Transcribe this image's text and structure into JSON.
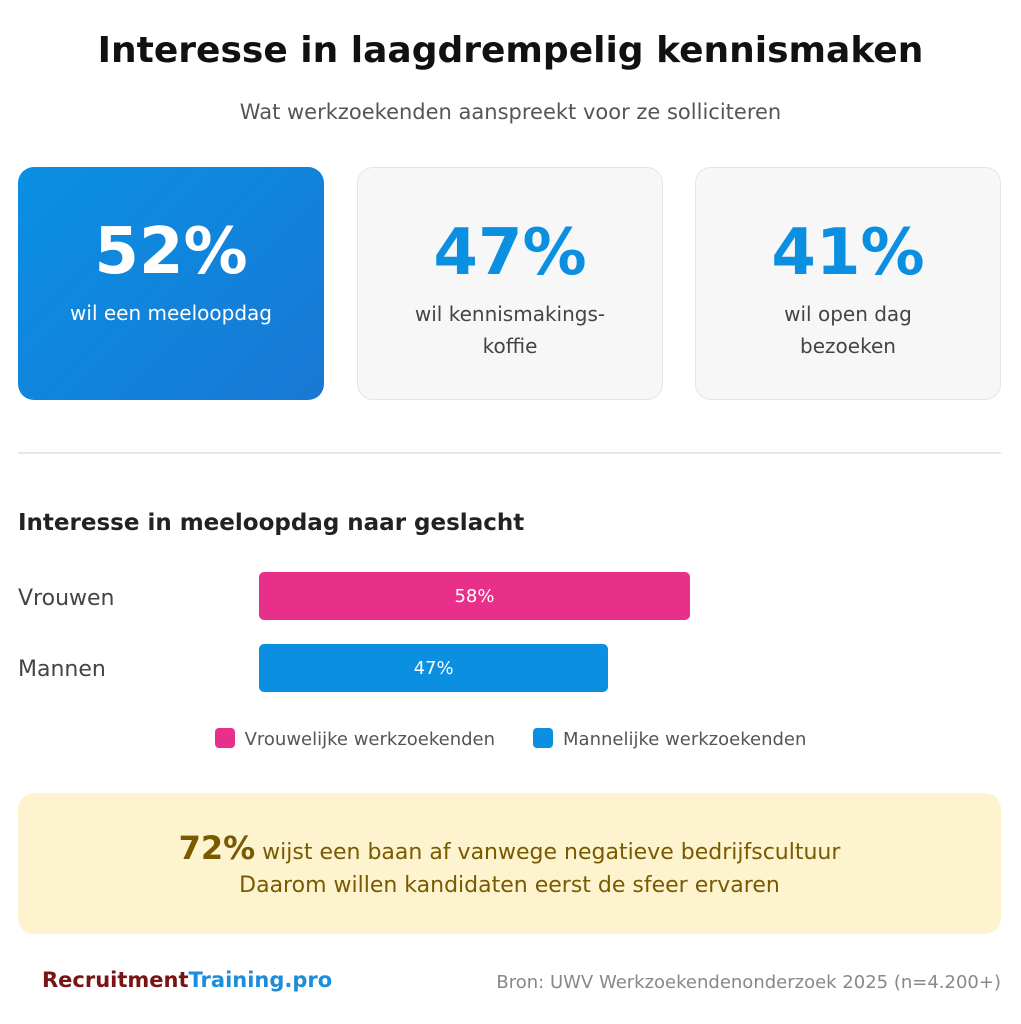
{
  "title": "Interesse in laagdrempelig kennismaken",
  "subtitle": "Wat werkzoekenden aanspreekt voor ze solliciteren",
  "stats": [
    {
      "value": "52%",
      "label": "wil een meeloopdag",
      "highlight": true
    },
    {
      "value": "47%",
      "label": "wil kennismakings-\nkoffie",
      "highlight": false
    },
    {
      "value": "41%",
      "label": "wil open dag\nbezoeken",
      "highlight": false
    }
  ],
  "chart_data": {
    "type": "bar",
    "orientation": "horizontal",
    "title": "Interesse in meeloopdag naar geslacht",
    "categories": [
      "Vrouwen",
      "Mannen"
    ],
    "values": [
      58,
      47
    ],
    "data_labels": [
      "58%",
      "47%"
    ],
    "colors": [
      "#e8308a",
      "#0b8fe0"
    ],
    "xlim": [
      0,
      100
    ],
    "legend": [
      "Vrouwelijke werkzoekenden",
      "Mannelijke werkzoekenden"
    ],
    "legend_placement": "bottom",
    "grid": false
  },
  "callout": {
    "highlight": "72%",
    "line1": " wijst een baan af vanwege negatieve bedrijfscultuur",
    "line2": "Daarom willen kandidaten eerst de sfeer ervaren"
  },
  "logo": {
    "part1": "Recruitment",
    "part2": "Training.pro"
  },
  "source": "Bron: UWV Werkzoekendenonderzoek 2025 (n=4.200+)"
}
